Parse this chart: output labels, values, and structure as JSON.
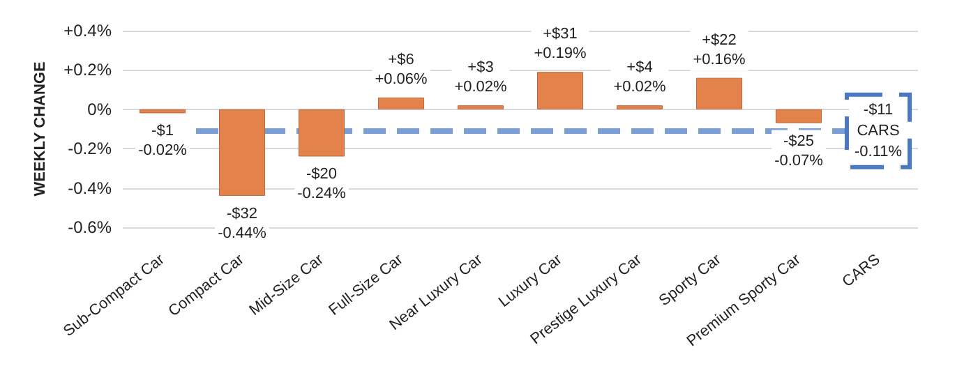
{
  "chart_data": {
    "type": "bar",
    "ylabel": "WEEKLY CHANGE",
    "categories": [
      "Sub-Compact Car",
      "Compact Car",
      "Mid-Size Car",
      "Full-Size Car",
      "Near Luxury Car",
      "Luxury Car",
      "Prestige Luxury Car",
      "Sporty Car",
      "Premium Sporty Car",
      "CARS"
    ],
    "values": [
      -0.02,
      -0.44,
      -0.24,
      0.06,
      0.02,
      0.19,
      0.02,
      0.16,
      -0.07,
      null
    ],
    "value_labels": [
      "-$1\n-0.02%",
      "-$32\n-0.44%",
      "-$20\n-0.24%",
      "+$6\n+0.06%",
      "+$3\n+0.02%",
      "+$31\n+0.19%",
      "+$4\n+0.02%",
      "+$22\n+0.16%",
      "-$25\n-0.07%",
      null
    ],
    "color": "#e4824c",
    "ylim": [
      -0.6,
      0.4
    ],
    "yticks": [
      {
        "value": -0.6,
        "label": "-0.6%"
      },
      {
        "value": -0.4,
        "label": "-0.4%"
      },
      {
        "value": -0.2,
        "label": "-0.2%"
      },
      {
        "value": 0,
        "label": "0%"
      },
      {
        "value": 0.2,
        "label": "+0.2%"
      },
      {
        "value": 0.4,
        "label": "+0.4%"
      }
    ],
    "grid": "y",
    "ref_lines": [
      {
        "axis": "y",
        "value": -0.11,
        "label": "-$11\nCARS\n-0.11%",
        "color": "#7a9fd4",
        "line_style": "dashed"
      }
    ]
  }
}
